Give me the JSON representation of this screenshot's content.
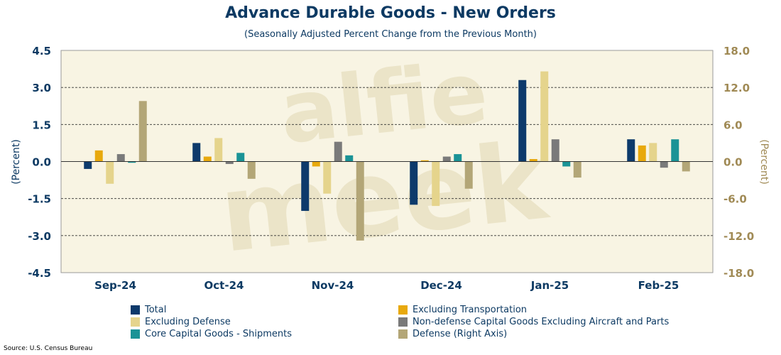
{
  "chart_data": {
    "type": "bar",
    "title": "Advance Durable Goods - New Orders",
    "subtitle": "(Seasonally Adjusted Percent Change from the Previous Month)",
    "ylabel": "(Percent)",
    "y2label": "(Percent)",
    "ylim": [
      -4.5,
      4.5
    ],
    "y2lim": [
      -18.0,
      18.0
    ],
    "yticks": [
      "4.5",
      "3.0",
      "1.5",
      "0.0",
      "-1.5",
      "-3.0",
      "-4.5"
    ],
    "y2ticks": [
      "18.0",
      "12.0",
      "6.0",
      "0.0",
      "-6.0",
      "-12.0",
      "-18.0"
    ],
    "grid": "horizontal dashed",
    "categories": [
      "Sep-24",
      "Oct-24",
      "Nov-24",
      "Dec-24",
      "Jan-25",
      "Feb-25"
    ],
    "series": [
      {
        "name": "Total",
        "color": "#0d3a6b",
        "axis": "left",
        "values": [
          -0.3,
          0.75,
          -2.0,
          -1.75,
          3.3,
          0.9
        ]
      },
      {
        "name": "Excluding Transportation",
        "color": "#e8a90d",
        "axis": "left",
        "values": [
          0.45,
          0.2,
          -0.2,
          0.05,
          0.1,
          0.65
        ]
      },
      {
        "name": "Excluding Defense",
        "color": "#e5d48c",
        "axis": "left",
        "values": [
          -0.9,
          0.95,
          -1.3,
          -1.8,
          3.65,
          0.75
        ]
      },
      {
        "name": "Non-defense Capital Goods Excluding Aircraft and Parts",
        "color": "#7a7a7a",
        "axis": "left",
        "values": [
          0.3,
          -0.1,
          0.8,
          0.2,
          0.9,
          -0.25
        ]
      },
      {
        "name": "Core Capital Goods - Shipments",
        "color": "#1a9396",
        "axis": "left",
        "values": [
          -0.05,
          0.35,
          0.25,
          0.3,
          -0.2,
          0.9
        ]
      },
      {
        "name": "Defense (Right Axis)",
        "color": "#b3a677",
        "axis": "right",
        "values": [
          9.8,
          -2.8,
          -12.8,
          -4.4,
          -2.6,
          -1.6
        ]
      }
    ],
    "legend_position": "bottom"
  },
  "source": "Source: U.S. Census Bureau",
  "watermark": "alfie meek"
}
